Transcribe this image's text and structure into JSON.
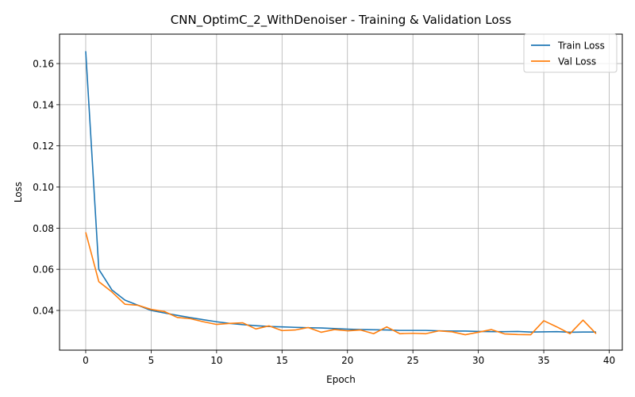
{
  "chart_data": {
    "type": "line",
    "title": "CNN_OptimC_2_WithDenoiser - Training & Validation Loss",
    "xlabel": "Epoch",
    "ylabel": "Loss",
    "xlim": [
      -2,
      41
    ],
    "ylim": [
      0.0207,
      0.1743
    ],
    "xticks": [
      0,
      5,
      10,
      15,
      20,
      25,
      30,
      35,
      40
    ],
    "yticks": [
      0.04,
      0.06,
      0.08,
      0.1,
      0.12,
      0.14,
      0.16
    ],
    "xtick_labels": [
      "0",
      "5",
      "10",
      "15",
      "20",
      "25",
      "30",
      "35",
      "40"
    ],
    "ytick_labels": [
      "0.04",
      "0.06",
      "0.08",
      "0.10",
      "0.12",
      "0.14",
      "0.16"
    ],
    "grid": true,
    "legend_position": "top-right",
    "x": [
      0,
      1,
      2,
      3,
      4,
      5,
      6,
      7,
      8,
      9,
      10,
      11,
      12,
      13,
      14,
      15,
      16,
      17,
      18,
      19,
      20,
      21,
      22,
      23,
      24,
      25,
      26,
      27,
      28,
      29,
      30,
      31,
      32,
      33,
      34,
      35,
      36,
      37,
      38,
      39
    ],
    "series": [
      {
        "name": "Train Loss",
        "color": "#1f77b4",
        "values": [
          0.166,
          0.06,
          0.05,
          0.045,
          0.0425,
          0.04,
          0.0388,
          0.0376,
          0.0365,
          0.0355,
          0.0345,
          0.0337,
          0.0331,
          0.0326,
          0.0322,
          0.032,
          0.0318,
          0.0316,
          0.0315,
          0.0312,
          0.0309,
          0.0307,
          0.0306,
          0.0305,
          0.0303,
          0.0303,
          0.0303,
          0.0301,
          0.03,
          0.03,
          0.0298,
          0.0297,
          0.0297,
          0.0298,
          0.0295,
          0.0296,
          0.0297,
          0.0294,
          0.0295,
          0.0295
        ]
      },
      {
        "name": "Val Loss",
        "color": "#ff7f0e",
        "values": [
          0.078,
          0.054,
          0.049,
          0.043,
          0.0425,
          0.0405,
          0.0395,
          0.0366,
          0.036,
          0.0345,
          0.0332,
          0.0337,
          0.034,
          0.031,
          0.0325,
          0.0302,
          0.0305,
          0.0317,
          0.0294,
          0.0307,
          0.0301,
          0.0305,
          0.0287,
          0.032,
          0.0287,
          0.0289,
          0.0287,
          0.0301,
          0.0296,
          0.0282,
          0.0294,
          0.0307,
          0.0286,
          0.0283,
          0.0282,
          0.035,
          0.032,
          0.0287,
          0.0353,
          0.0287
        ]
      }
    ]
  }
}
